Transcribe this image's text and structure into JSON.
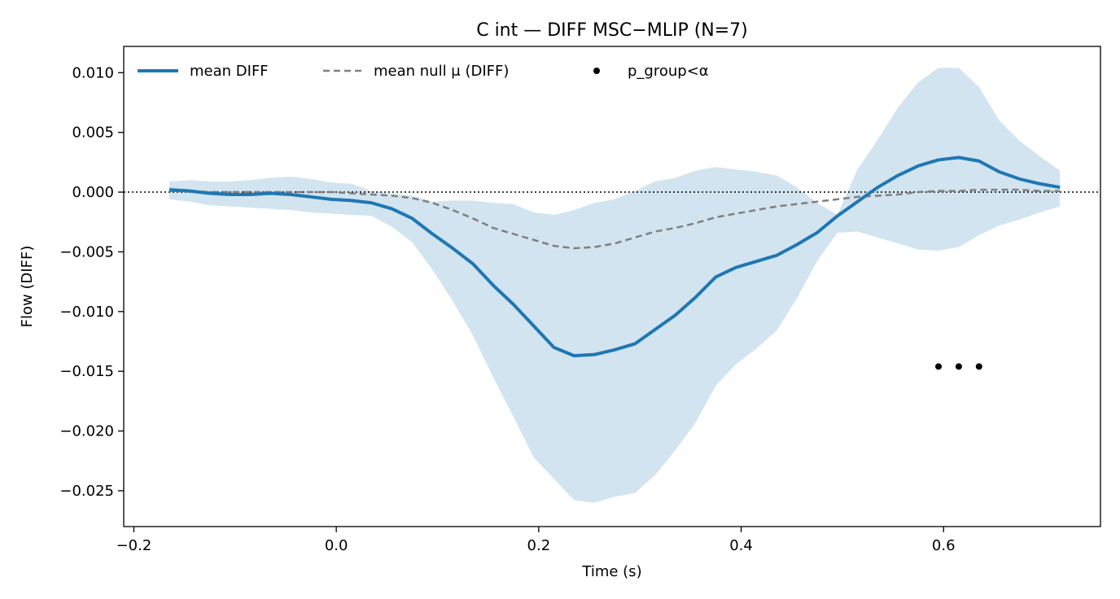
{
  "chart_data": {
    "type": "line",
    "title": "C int — DIFF MSC−MLIP (N=7)",
    "xlabel": "Time (s)",
    "ylabel": "Flow (DIFF)",
    "xlim": [
      -0.21,
      0.755
    ],
    "ylim": [
      -0.028,
      0.0122
    ],
    "xticks": [
      -0.2,
      0.0,
      0.2,
      0.4,
      0.6
    ],
    "xtick_labels": [
      "−0.2",
      "0.0",
      "0.2",
      "0.4",
      "0.6"
    ],
    "yticks": [
      0.01,
      0.005,
      0.0,
      -0.005,
      -0.01,
      -0.015,
      -0.02,
      -0.025
    ],
    "ytick_labels": [
      "0.010",
      "0.005",
      "0.000",
      "−0.005",
      "−0.010",
      "−0.015",
      "−0.020",
      "−0.025"
    ],
    "legend_position": "top-left",
    "grid": false,
    "zero_line": 0.0,
    "x": [
      -0.165,
      -0.145,
      -0.125,
      -0.105,
      -0.085,
      -0.065,
      -0.045,
      -0.025,
      -0.005,
      0.015,
      0.035,
      0.055,
      0.075,
      0.095,
      0.115,
      0.135,
      0.155,
      0.175,
      0.195,
      0.215,
      0.235,
      0.255,
      0.275,
      0.295,
      0.315,
      0.335,
      0.355,
      0.375,
      0.395,
      0.415,
      0.435,
      0.455,
      0.475,
      0.495,
      0.515,
      0.535,
      0.555,
      0.575,
      0.595,
      0.615,
      0.635,
      0.655,
      0.675,
      0.695,
      0.715
    ],
    "series": [
      {
        "name": "mean DIFF",
        "color": "#1f77b4",
        "style": "solid",
        "values": [
          0.0002,
          0.0001,
          -0.0001,
          -0.0002,
          -0.0002,
          -0.0001,
          -0.0002,
          -0.0004,
          -0.0006,
          -0.0007,
          -0.0009,
          -0.0014,
          -0.0022,
          -0.0035,
          -0.0047,
          -0.006,
          -0.0078,
          -0.0094,
          -0.0112,
          -0.013,
          -0.0137,
          -0.0136,
          -0.0132,
          -0.0127,
          -0.0115,
          -0.0103,
          -0.0088,
          -0.0071,
          -0.0063,
          -0.0058,
          -0.0053,
          -0.0044,
          -0.0034,
          -0.002,
          -0.0008,
          0.0004,
          0.0014,
          0.0022,
          0.0027,
          0.0029,
          0.0026,
          0.0017,
          0.0011,
          0.0007,
          0.0004
        ]
      },
      {
        "name": "mean null μ (DIFF)",
        "color": "#808080",
        "style": "dashed",
        "values": [
          0.0001,
          0.0001,
          0.0,
          0.0,
          0.0,
          0.0,
          0.0,
          0.0,
          0.0,
          -0.0001,
          -0.0002,
          -0.0003,
          -0.0005,
          -0.0009,
          -0.0015,
          -0.0022,
          -0.003,
          -0.0035,
          -0.004,
          -0.0045,
          -0.0047,
          -0.0046,
          -0.0043,
          -0.0038,
          -0.0033,
          -0.003,
          -0.0026,
          -0.0021,
          -0.0018,
          -0.0015,
          -0.0012,
          -0.001,
          -0.0008,
          -0.0006,
          -0.0004,
          -0.0003,
          -0.0002,
          0.0,
          0.0001,
          0.0001,
          0.0002,
          0.0002,
          0.0002,
          0.0001,
          0.0001
        ]
      }
    ],
    "band": {
      "color": "#1f77b4",
      "opacity": 0.2,
      "upper": [
        0.0009,
        0.001,
        0.0009,
        0.0009,
        0.001,
        0.0012,
        0.0013,
        0.0011,
        0.0008,
        0.0007,
        0.0001,
        -0.0001,
        -0.0003,
        -0.0008,
        -0.0007,
        -0.0007,
        -0.0009,
        -0.001,
        -0.0017,
        -0.0019,
        -0.0015,
        -0.0009,
        -0.0006,
        0.0001,
        0.0009,
        0.0012,
        0.0018,
        0.0021,
        0.0019,
        0.0017,
        0.0014,
        0.0004,
        -0.0009,
        -0.0019,
        0.0019,
        0.0044,
        0.0071,
        0.0092,
        0.0104,
        0.0104,
        0.0088,
        0.006,
        0.0043,
        0.003,
        0.0018
      ],
      "lower": [
        -0.0006,
        -0.0008,
        -0.0011,
        -0.0012,
        -0.0013,
        -0.0014,
        -0.0015,
        -0.0017,
        -0.0018,
        -0.0019,
        -0.002,
        -0.0029,
        -0.0042,
        -0.0065,
        -0.0091,
        -0.012,
        -0.0155,
        -0.0188,
        -0.0222,
        -0.024,
        -0.0258,
        -0.026,
        -0.0255,
        -0.0252,
        -0.0237,
        -0.0216,
        -0.0193,
        -0.0162,
        -0.0144,
        -0.0131,
        -0.0116,
        -0.0089,
        -0.0058,
        -0.0034,
        -0.0033,
        -0.0038,
        -0.0043,
        -0.0048,
        -0.0049,
        -0.0046,
        -0.0036,
        -0.0028,
        -0.0023,
        -0.0017,
        -0.0012
      ]
    },
    "significance": {
      "name": "p_group<α",
      "color": "#000000",
      "x": [
        0.595,
        0.615,
        0.635
      ],
      "y": [
        -0.0146,
        -0.0146,
        -0.0146
      ]
    }
  }
}
